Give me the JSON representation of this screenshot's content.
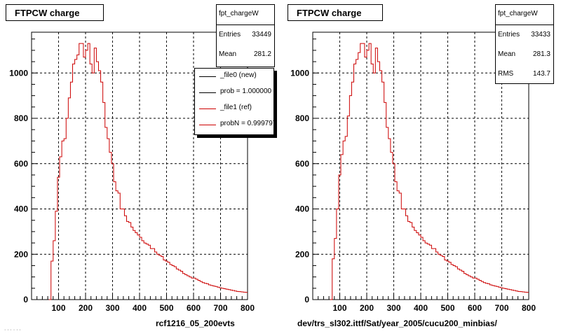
{
  "colors": {
    "new": "#000000",
    "ref": "#cc0000",
    "axis": "#000000",
    "grid": "#000000"
  },
  "stamp": "· · · · · ·",
  "chart_data": [
    {
      "type": "histogram",
      "title": "FTPCW charge",
      "footer": "rcf1216_05_200evts",
      "xlim": [
        0,
        800
      ],
      "ylim": [
        0,
        1180
      ],
      "xticks": [
        100,
        200,
        300,
        400,
        500,
        600,
        700,
        800
      ],
      "yticks": [
        0,
        200,
        400,
        600,
        800,
        1000
      ],
      "grid": true,
      "stats": {
        "name": "fpt_chargeW",
        "entries_label": "Entries",
        "entries": "33449",
        "mean_label": "Mean",
        "mean": "281.2"
      },
      "legend": {
        "placement": "top-right",
        "entries": [
          {
            "label": "_file0 (new)",
            "color": "#000000"
          },
          {
            "label": "prob = 1.000000",
            "color": "#000000"
          },
          {
            "label": "_file1 (ref)",
            "color": "#cc0000"
          },
          {
            "label": "probN = 0.999797",
            "color": "#cc0000"
          }
        ]
      },
      "bin_width": 8,
      "x_start": 64,
      "values": [
        0,
        170,
        260,
        390,
        540,
        630,
        700,
        710,
        800,
        890,
        960,
        1040,
        1060,
        1080,
        1130,
        1130,
        1070,
        1100,
        1130,
        1040,
        1000,
        1110,
        1050,
        1010,
        960,
        870,
        760,
        710,
        650,
        600,
        520,
        480,
        470,
        400,
        400,
        370,
        345,
        340,
        320,
        305,
        295,
        285,
        275,
        260,
        250,
        245,
        240,
        225,
        225,
        210,
        200,
        195,
        190,
        175,
        170,
        165,
        155,
        150,
        145,
        135,
        130,
        125,
        115,
        110,
        105,
        100,
        95,
        95,
        90,
        85,
        80,
        75,
        72,
        70,
        65,
        62,
        60,
        58,
        55,
        52,
        50,
        48,
        46,
        44,
        42,
        40,
        38,
        36,
        35,
        34,
        33,
        32
      ]
    },
    {
      "type": "histogram",
      "title": "FTPCW charge",
      "footer": "dev/trs_sl302.ittf/Sat/year_2005/cucu200_minbias/",
      "xlim": [
        0,
        800
      ],
      "ylim": [
        0,
        1180
      ],
      "xticks": [
        100,
        200,
        300,
        400,
        500,
        600,
        700,
        800
      ],
      "yticks": [
        0,
        200,
        400,
        600,
        800,
        1000
      ],
      "grid": true,
      "stats": {
        "name": "fpt_chargeW",
        "entries_label": "Entries",
        "entries": "33433",
        "mean_label": "Mean",
        "mean": "281.3",
        "rms_label": "RMS",
        "rms": "143.7"
      },
      "bin_width": 8,
      "x_start": 64,
      "values": [
        0,
        180,
        270,
        400,
        550,
        640,
        700,
        720,
        810,
        900,
        960,
        1040,
        1060,
        1090,
        1130,
        1130,
        1070,
        1100,
        1130,
        1040,
        1000,
        1110,
        1050,
        1010,
        960,
        870,
        760,
        710,
        650,
        600,
        520,
        480,
        470,
        400,
        400,
        370,
        345,
        340,
        320,
        305,
        295,
        285,
        275,
        260,
        250,
        245,
        240,
        225,
        225,
        210,
        200,
        195,
        190,
        175,
        170,
        165,
        155,
        150,
        145,
        135,
        130,
        125,
        115,
        110,
        105,
        100,
        95,
        95,
        90,
        85,
        80,
        75,
        72,
        70,
        65,
        62,
        60,
        58,
        55,
        52,
        50,
        48,
        46,
        44,
        42,
        40,
        38,
        36,
        35,
        34,
        33,
        32
      ]
    }
  ]
}
